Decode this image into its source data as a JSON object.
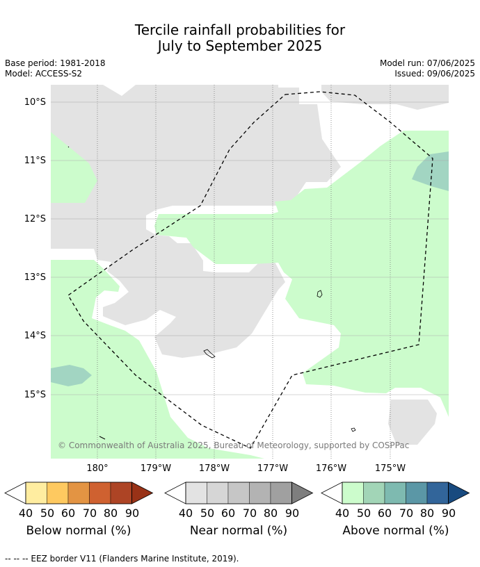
{
  "title": {
    "line1": "Tercile rainfall probabilities for",
    "line2": "July to September 2025"
  },
  "meta": {
    "base_period": "Base period: 1981-2018",
    "model": "Model: ACCESS-S2",
    "model_run": "Model run: 07/06/2025",
    "issued": "Issued: 09/06/2025"
  },
  "map": {
    "lat_labels": [
      "10°S",
      "11°S",
      "12°S",
      "13°S",
      "14°S",
      "15°S"
    ],
    "lon_labels": [
      "180°",
      "179°W",
      "178°W",
      "177°W",
      "176°W",
      "175°W"
    ],
    "copyright": "© Commonwealth of Australia 2025, Bureau of Meteorology, supported by COSPPac",
    "colors": {
      "near_normal_grey": "#e3e3e3",
      "above_normal_green": "#ccfccc",
      "above_normal_teal": "#a2d5c2",
      "eez_border": "#000000"
    }
  },
  "colorbars": {
    "ticks": [
      "40",
      "50",
      "60",
      "70",
      "80",
      "90"
    ],
    "below": {
      "title": "Below normal (%)",
      "colors": [
        "#ffffff",
        "#ffeda0",
        "#fec960",
        "#e39443",
        "#cf6130",
        "#ad4425",
        "#993217"
      ]
    },
    "near": {
      "title": "Near normal (%)",
      "colors": [
        "#ffffff",
        "#e3e3e3",
        "#d6d6d6",
        "#c6c6c6",
        "#b3b3b3",
        "#a0a0a0",
        "#7e7e7e"
      ]
    },
    "above": {
      "title": "Above normal (%)",
      "colors": [
        "#ffffff",
        "#ccfccc",
        "#a2d5b7",
        "#7ebab0",
        "#5b97a6",
        "#32659a",
        "#184a7f"
      ]
    }
  },
  "footer": "--  --  -- EEZ border V11 (Flanders Marine Institute, 2019)."
}
